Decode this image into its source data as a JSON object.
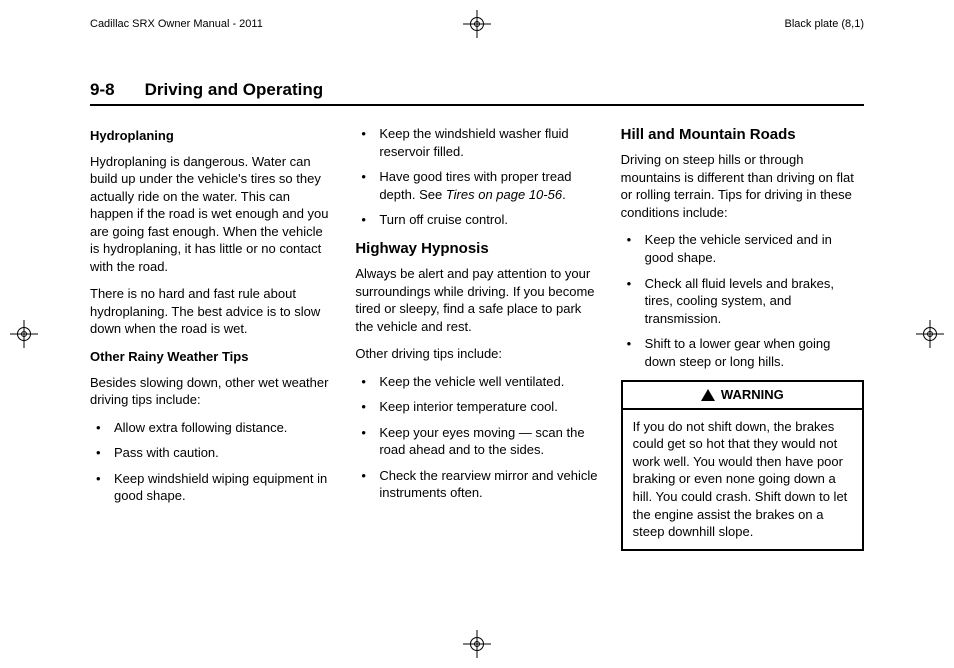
{
  "header": {
    "left": "Cadillac SRX Owner Manual - 2011",
    "right": "Black plate (8,1)"
  },
  "pageHeading": {
    "number": "9-8",
    "chapter": "Driving and Operating"
  },
  "col1": {
    "h_hydro": "Hydroplaning",
    "p_hydro1": "Hydroplaning is dangerous. Water can build up under the vehicle's tires so they actually ride on the water. This can happen if the road is wet enough and you are going fast enough. When the vehicle is hydroplaning, it has little or no contact with the road.",
    "p_hydro2": "There is no hard and fast rule about hydroplaning. The best advice is to slow down when the road is wet.",
    "h_rainy": "Other Rainy Weather Tips",
    "p_rainy": "Besides slowing down, other wet weather driving tips include:",
    "li1": "Allow extra following distance.",
    "li2": "Pass with caution.",
    "li3": "Keep windshield wiping equipment in good shape."
  },
  "col2": {
    "li4": "Keep the windshield washer fluid reservoir filled.",
    "li5a": "Have good tires with proper tread depth. See ",
    "li5b": "Tires on page 10‑56",
    "li5c": ".",
    "li6": "Turn off cruise control.",
    "h_hypnosis": "Highway Hypnosis",
    "p_hyp1": "Always be alert and pay attention to your surroundings while driving. If you become tired or sleepy, find a safe place to park the vehicle and rest.",
    "p_hyp2": "Other driving tips include:",
    "hli1": "Keep the vehicle well ventilated.",
    "hli2": "Keep interior temperature cool.",
    "hli3": "Keep your eyes moving — scan the road ahead and to the sides.",
    "hli4": "Check the rearview mirror and vehicle instruments often."
  },
  "col3": {
    "h_hill": "Hill and Mountain Roads",
    "p_hill": "Driving on steep hills or through mountains is different than driving on flat or rolling terrain. Tips for driving in these conditions include:",
    "mli1": "Keep the vehicle serviced and in good shape.",
    "mli2": "Check all fluid levels and brakes, tires, cooling system, and transmission.",
    "mli3": "Shift to a lower gear when going down steep or long hills.",
    "warning_label": "WARNING",
    "warning_body": "If you do not shift down, the brakes could get so hot that they would not work well. You would then have poor braking or even none going down a hill. You could crash. Shift down to let the engine assist the brakes on a steep downhill slope."
  }
}
